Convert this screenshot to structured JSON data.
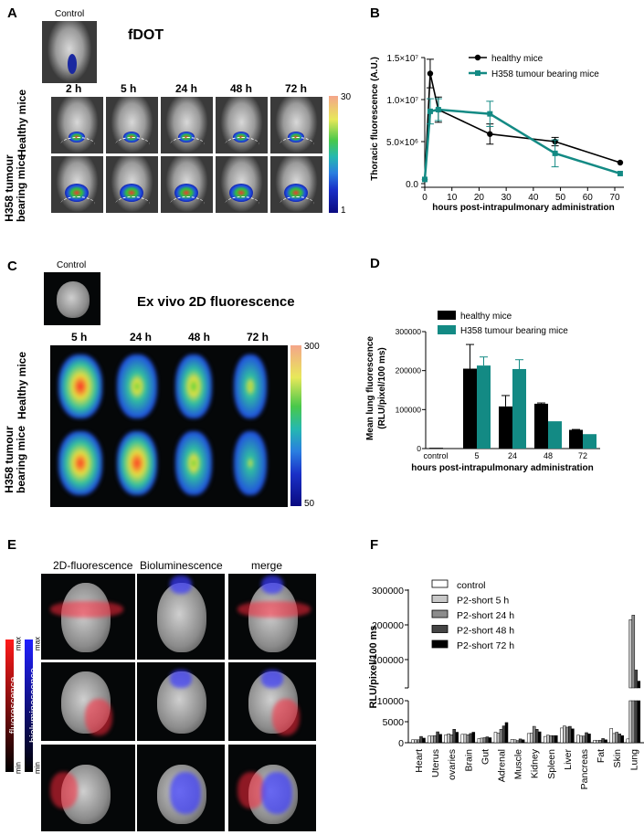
{
  "panel_labels": {
    "a": "A",
    "b": "B",
    "c": "C",
    "d": "D",
    "e": "E",
    "f": "F"
  },
  "panel_a": {
    "control_label": "Control",
    "title": "fDOT",
    "time_labels": [
      "2 h",
      "5 h",
      "24 h",
      "48 h",
      "72 h"
    ],
    "row_labels": [
      "Healthy mice",
      "H358 tumour bearing mice"
    ],
    "colorbar": {
      "max": "30",
      "min": "1",
      "colors": [
        "#f4a58a",
        "#e8e85a",
        "#49c84a",
        "#25b8b0",
        "#2a7ee0",
        "#1a30c8",
        "#0a0a80"
      ]
    }
  },
  "panel_c": {
    "control_label": "Control",
    "title": "Ex vivo 2D fluorescence",
    "time_labels": [
      "5 h",
      "24 h",
      "48 h",
      "72 h"
    ],
    "row_labels": [
      "Healthy mice",
      "H358 tumour bearing mice"
    ],
    "colorbar": {
      "max": "300",
      "min": "50"
    }
  },
  "panel_e": {
    "column_labels": [
      "2D-fluorescence",
      "Bioluminescence",
      "merge"
    ],
    "scale_fluorescence": {
      "label": "fluorescence",
      "max": "max",
      "min": "min",
      "color": "#ff1a1a"
    },
    "scale_bioluminescence": {
      "label": "bioluminescence",
      "max": "max",
      "min": "min",
      "color": "#2020ff"
    }
  },
  "chart_data": [
    {
      "id": "B",
      "type": "line",
      "xlabel": "hours post-intrapulmonary administration",
      "ylabel": "Thoracic fluorescence (A.U.)",
      "xlim": [
        0,
        72
      ],
      "ylim": [
        0,
        15000000
      ],
      "xticks": [
        0,
        10,
        20,
        30,
        40,
        50,
        60,
        70
      ],
      "yticks": [
        {
          "v": 0,
          "label": "0.0"
        },
        {
          "v": 5000000,
          "label": "5.0×10⁶"
        },
        {
          "v": 10000000,
          "label": "1.0×10⁷"
        },
        {
          "v": 15000000,
          "label": "1.5×10⁷"
        }
      ],
      "legend_position": "top-right",
      "series": [
        {
          "name": "healthy mice",
          "color": "#000000",
          "marker": "circle",
          "x": [
            0,
            2,
            5,
            24,
            48,
            72
          ],
          "y": [
            500000,
            13100000,
            8800000,
            5900000,
            5000000,
            2500000
          ],
          "err": [
            0,
            1700000,
            1500000,
            1200000,
            500000,
            0
          ]
        },
        {
          "name": "H358 tumour bearing mice",
          "color": "#138a84",
          "marker": "square",
          "x": [
            0,
            2,
            5,
            24,
            48,
            72
          ],
          "y": [
            500000,
            8600000,
            8800000,
            8300000,
            3600000,
            1200000
          ],
          "err": [
            0,
            1500000,
            1300000,
            1500000,
            1600000,
            0
          ]
        }
      ]
    },
    {
      "id": "D",
      "type": "bar",
      "xlabel": "hours post-intrapulmonary administration",
      "ylabel": "Mean lung fluorescence (RLU/pixel/100 ms)",
      "ylabel_lines": [
        "Mean lung fluorescence",
        "(RLU/pixel/100 ms)"
      ],
      "categories": [
        "control",
        "5",
        "24",
        "48",
        "72"
      ],
      "ylim": [
        0,
        300000
      ],
      "yticks": [
        {
          "v": 0,
          "label": "0"
        },
        {
          "v": 100000,
          "label": "100000"
        },
        {
          "v": 200000,
          "label": "200000"
        },
        {
          "v": 300000,
          "label": "300000"
        }
      ],
      "legend_position": "top",
      "series": [
        {
          "name": "healthy mice",
          "color": "#000000",
          "values": [
            2000,
            205000,
            108000,
            115000,
            48000
          ],
          "err": [
            0,
            62000,
            28000,
            2000,
            1000
          ]
        },
        {
          "name": "H358 tumour bearing mice",
          "color": "#138a84",
          "values": [
            null,
            213000,
            204000,
            70000,
            37000
          ],
          "err": [
            0,
            22000,
            24000,
            0,
            0
          ]
        }
      ]
    },
    {
      "id": "F",
      "type": "bar",
      "ylabel": "RLU/pixel/100 ms",
      "categories": [
        "Heart",
        "Uterus",
        "ovaries",
        "Brain",
        "Gut",
        "Adrenal",
        "Muscle",
        "Kidney",
        "Spleen",
        "Liver",
        "Pancreas",
        "Fat",
        "Skin",
        "Lung"
      ],
      "ylim": [
        0,
        300000
      ],
      "axis_break": [
        10000,
        20000
      ],
      "yticks": [
        {
          "v": 0,
          "label": "0"
        },
        {
          "v": 5000,
          "label": "5000"
        },
        {
          "v": 10000,
          "label": "10000"
        },
        {
          "v": 100000,
          "label": "100000"
        },
        {
          "v": 200000,
          "label": "200000"
        },
        {
          "v": 300000,
          "label": "300000"
        }
      ],
      "legend_position": "top-left",
      "series": [
        {
          "name": "control",
          "color": "#ffffff",
          "values": [
            700,
            1600,
            1900,
            2000,
            1000,
            2500,
            800,
            2200,
            1500,
            3500,
            1800,
            600,
            3400,
            900
          ]
        },
        {
          "name": "P2-short 5 h",
          "color": "#c8c8c8",
          "values": [
            700,
            1600,
            2100,
            2000,
            1100,
            2300,
            700,
            2300,
            1800,
            4000,
            1600,
            500,
            2200,
            215000
          ]
        },
        {
          "name": "P2-short 24 h",
          "color": "#8c8c8c",
          "values": [
            700,
            1700,
            1900,
            1900,
            1200,
            3200,
            500,
            3900,
            1700,
            3700,
            1600,
            600,
            2500,
            228000
          ]
        },
        {
          "name": "P2-short 48 h",
          "color": "#444444",
          "values": [
            1500,
            2600,
            3200,
            2200,
            1400,
            4000,
            900,
            3200,
            1700,
            3900,
            2400,
            1000,
            2100,
            70000
          ]
        },
        {
          "name": "P2-short 72 h",
          "color": "#000000",
          "values": [
            1100,
            2000,
            2500,
            2500,
            1200,
            4800,
            700,
            2600,
            1700,
            3300,
            2100,
            700,
            1700,
            38000
          ]
        }
      ]
    }
  ]
}
